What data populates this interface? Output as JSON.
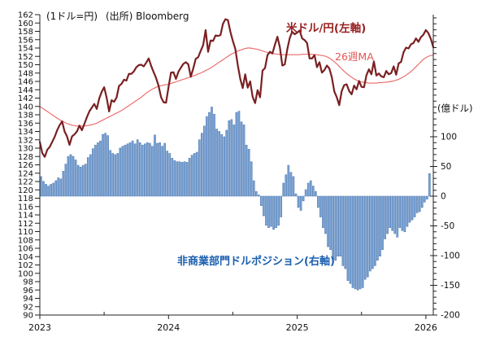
{
  "header": {
    "left_axis_unit": "(1ドル=円)",
    "source": "(出所) Bloomberg"
  },
  "annotations": {
    "price_label": "米ドル/円(左軸)",
    "ma_label": "26週MA",
    "bars_label": "非商業部門ドルポジション(右軸)",
    "right_axis_unit": "(億ドル)"
  },
  "colors": {
    "price_line": "#7a2022",
    "price_label": "#96201f",
    "ma_line": "#ec6a6a",
    "ma_label": "#e05555",
    "bar_fill": "#7ba3d4",
    "bar_stroke": "#4f7ab2",
    "bars_label": "#1a5fae",
    "axis": "#222222",
    "tick_text": "#111111"
  },
  "chart_data": {
    "type": "combo",
    "frequency": "weekly",
    "x_axis": {
      "tick_labels": [
        "2023",
        "2024",
        "2025",
        "2026"
      ],
      "weeks_per_year": 52
    },
    "left_axis": {
      "unit": "(1ドル=円)",
      "min": 90,
      "max": 162,
      "step": 2
    },
    "right_axis": {
      "unit": "(億ドル)",
      "min": -200,
      "max": 100,
      "label_step": 50,
      "minor_step": 10
    },
    "source": "(出所) Bloomberg",
    "series": [
      {
        "name": "米ドル/円(左軸)",
        "type": "line",
        "axis": "left",
        "values": [
          131.5,
          128.8,
          127.9,
          129.6,
          130.3,
          131.5,
          132.7,
          134.3,
          135.5,
          136.4,
          134.0,
          132.8,
          130.8,
          132.8,
          133.3,
          134.0,
          135.4,
          134.3,
          135.8,
          137.4,
          138.8,
          139.7,
          140.6,
          139.4,
          141.9,
          143.5,
          144.6,
          142.1,
          138.8,
          141.5,
          141.1,
          142.1,
          144.9,
          145.4,
          146.4,
          146.2,
          147.8,
          147.8,
          148.4,
          149.4,
          149.9,
          150.0,
          149.6,
          150.5,
          151.5,
          149.7,
          148.2,
          146.8,
          144.9,
          142.2,
          141.0,
          140.9,
          144.6,
          148.1,
          148.2,
          146.6,
          148.3,
          149.3,
          150.2,
          150.6,
          150.1,
          147.1,
          149.1,
          151.4,
          151.8,
          153.3,
          154.7,
          158.3,
          153.1,
          155.8,
          155.7,
          157.0,
          156.9,
          157.1,
          159.8,
          160.9,
          160.7,
          157.9,
          155.7,
          153.8,
          149.9,
          146.6,
          144.4,
          147.7,
          144.5,
          146.0,
          142.3,
          140.8,
          143.9,
          142.2,
          148.6,
          149.2,
          152.3,
          153.1,
          152.7,
          154.8,
          156.7,
          154.2,
          149.8,
          150.1,
          153.7,
          156.4,
          157.9,
          157.3,
          157.7,
          158.2,
          156.3,
          155.9,
          155.2,
          151.5,
          151.5,
          152.3,
          149.4,
          150.6,
          148.1,
          148.7,
          149.8,
          149.1,
          147.0,
          143.6,
          142.2,
          140.3,
          143.7,
          145.1,
          145.3,
          143.7,
          142.9,
          145.0,
          144.1,
          146.1,
          144.7,
          144.6,
          147.5,
          148.9,
          147.7,
          150.8,
          147.4,
          147.9,
          147.2,
          147.0,
          148.5,
          147.7,
          148.0,
          149.6,
          147.6,
          150.3,
          150.7,
          153.0,
          154.1,
          153.9,
          154.9,
          155.2,
          156.3,
          155.5,
          156.6,
          157.2,
          158.3,
          157.6,
          156.2,
          154.2
        ]
      },
      {
        "name": "26週MA",
        "type": "line",
        "axis": "left",
        "values": [
          140.0,
          139.6,
          139.2,
          138.8,
          138.4,
          138.0,
          137.6,
          137.2,
          136.8,
          136.5,
          136.2,
          135.9,
          135.7,
          135.5,
          135.4,
          135.3,
          135.3,
          135.3,
          135.3,
          135.4,
          135.5,
          135.6,
          135.8,
          136.0,
          136.3,
          136.6,
          136.9,
          137.2,
          137.5,
          137.8,
          138.1,
          138.4,
          138.7,
          139.0,
          139.4,
          139.8,
          140.2,
          140.6,
          141.0,
          141.4,
          141.8,
          142.2,
          142.7,
          143.2,
          143.6,
          144.0,
          144.3,
          144.6,
          144.8,
          145.0,
          145.1,
          145.2,
          145.3,
          145.5,
          145.7,
          145.9,
          146.1,
          146.3,
          146.5,
          146.7,
          146.9,
          147.1,
          147.3,
          147.5,
          147.8,
          148.0,
          148.3,
          148.6,
          148.9,
          149.2,
          149.6,
          150.0,
          150.4,
          150.8,
          151.2,
          151.6,
          152.0,
          152.4,
          152.7,
          153.0,
          153.3,
          153.5,
          153.7,
          153.9,
          154.0,
          154.0,
          153.9,
          153.8,
          153.7,
          153.5,
          153.3,
          153.1,
          152.9,
          152.8,
          152.7,
          152.6,
          152.5,
          152.5,
          152.4,
          152.4,
          152.4,
          152.4,
          152.4,
          152.4,
          152.4,
          152.4,
          152.5,
          152.5,
          152.5,
          152.5,
          152.5,
          152.4,
          152.4,
          152.3,
          152.2,
          152.1,
          151.9,
          151.6,
          151.2,
          150.7,
          150.2,
          149.6,
          149.0,
          148.4,
          147.9,
          147.4,
          147.0,
          146.6,
          146.3,
          146.0,
          145.9,
          145.8,
          145.7,
          145.6,
          145.6,
          145.6,
          145.6,
          145.7,
          145.7,
          145.8,
          145.8,
          145.9,
          146.0,
          146.1,
          146.3,
          146.5,
          146.8,
          147.1,
          147.5,
          147.9,
          148.4,
          148.9,
          149.5,
          150.1,
          150.7,
          151.3,
          151.7,
          152.0,
          152.2,
          152.3
        ]
      },
      {
        "name": "非商業部門ドルポジション(右軸)",
        "type": "bar",
        "axis": "right",
        "values": [
          33,
          25,
          20,
          17,
          20,
          22,
          26,
          31,
          29,
          42,
          54,
          67,
          70,
          67,
          61,
          52,
          49,
          52,
          54,
          65,
          70,
          80,
          86,
          90,
          93,
          104,
          106,
          102,
          77,
          72,
          70,
          72,
          81,
          84,
          86,
          88,
          90,
          93,
          88,
          95,
          90,
          86,
          88,
          90,
          89,
          84,
          103,
          89,
          90,
          84,
          89,
          76,
          72,
          64,
          60,
          58,
          58,
          57,
          58,
          57,
          64,
          69,
          72,
          74,
          95,
          106,
          118,
          134,
          141,
          150,
          138,
          113,
          109,
          104,
          100,
          111,
          127,
          129,
          120,
          141,
          143,
          125,
          120,
          86,
          79,
          58,
          26,
          8,
          2,
          -16,
          -33,
          -49,
          -53,
          -51,
          -56,
          -53,
          -49,
          -35,
          22,
          36,
          52,
          40,
          33,
          4,
          -19,
          -24,
          -8,
          11,
          22,
          26,
          17,
          8,
          -19,
          -35,
          -53,
          -63,
          -85,
          -90,
          -106,
          -108,
          -101,
          -101,
          -117,
          -122,
          -142,
          -147,
          -154,
          -156,
          -158,
          -156,
          -154,
          -140,
          -136,
          -126,
          -122,
          -117,
          -108,
          -101,
          -90,
          -72,
          -63,
          -53,
          -58,
          -63,
          -69,
          -53,
          -58,
          -60,
          -51,
          -44,
          -40,
          -35,
          -28,
          -26,
          -19,
          -10,
          -5,
          38
        ]
      }
    ]
  }
}
